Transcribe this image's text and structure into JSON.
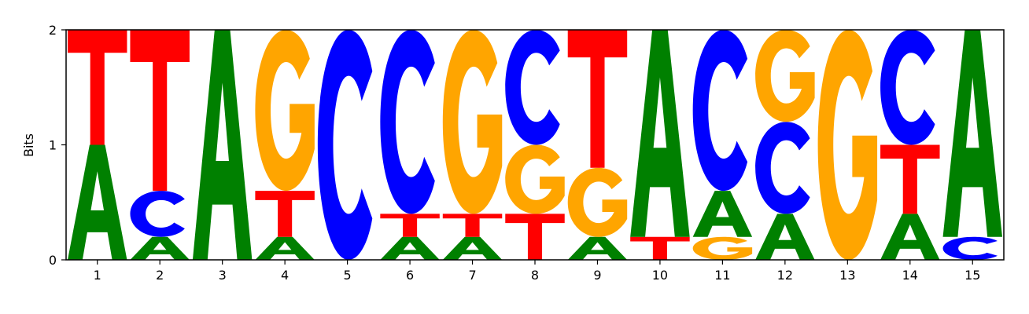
{
  "chart_data": {
    "type": "sequence-logo",
    "ylabel": "Bits",
    "ylim": [
      0,
      2
    ],
    "y_ticks": [
      "0",
      "1",
      "2"
    ],
    "x_ticks": [
      "1",
      "2",
      "3",
      "4",
      "5",
      "6",
      "7",
      "8",
      "9",
      "10",
      "11",
      "12",
      "13",
      "14",
      "15"
    ],
    "colors": {
      "A": "#008000",
      "C": "#0000ff",
      "G": "#ffa500",
      "T": "#ff0000"
    },
    "positions": [
      {
        "position": 1,
        "stack": [
          {
            "letter": "A",
            "bits": 1.0
          },
          {
            "letter": "T",
            "bits": 1.0
          }
        ]
      },
      {
        "position": 2,
        "stack": [
          {
            "letter": "A",
            "bits": 0.2
          },
          {
            "letter": "C",
            "bits": 0.4
          },
          {
            "letter": "T",
            "bits": 1.4
          }
        ]
      },
      {
        "position": 3,
        "stack": [
          {
            "letter": "A",
            "bits": 2.0
          }
        ]
      },
      {
        "position": 4,
        "stack": [
          {
            "letter": "A",
            "bits": 0.2
          },
          {
            "letter": "T",
            "bits": 0.4
          },
          {
            "letter": "G",
            "bits": 1.4
          }
        ]
      },
      {
        "position": 5,
        "stack": [
          {
            "letter": "C",
            "bits": 2.0
          }
        ]
      },
      {
        "position": 6,
        "stack": [
          {
            "letter": "A",
            "bits": 0.2
          },
          {
            "letter": "T",
            "bits": 0.2
          },
          {
            "letter": "C",
            "bits": 1.6
          }
        ]
      },
      {
        "position": 7,
        "stack": [
          {
            "letter": "A",
            "bits": 0.2
          },
          {
            "letter": "T",
            "bits": 0.2
          },
          {
            "letter": "G",
            "bits": 1.6
          }
        ]
      },
      {
        "position": 8,
        "stack": [
          {
            "letter": "T",
            "bits": 0.4
          },
          {
            "letter": "G",
            "bits": 0.6
          },
          {
            "letter": "C",
            "bits": 1.0
          }
        ]
      },
      {
        "position": 9,
        "stack": [
          {
            "letter": "A",
            "bits": 0.2
          },
          {
            "letter": "G",
            "bits": 0.6
          },
          {
            "letter": "T",
            "bits": 1.2
          }
        ]
      },
      {
        "position": 10,
        "stack": [
          {
            "letter": "T",
            "bits": 0.2
          },
          {
            "letter": "A",
            "bits": 1.8
          }
        ]
      },
      {
        "position": 11,
        "stack": [
          {
            "letter": "G",
            "bits": 0.2
          },
          {
            "letter": "A",
            "bits": 0.4
          },
          {
            "letter": "C",
            "bits": 1.4
          }
        ]
      },
      {
        "position": 12,
        "stack": [
          {
            "letter": "A",
            "bits": 0.4
          },
          {
            "letter": "C",
            "bits": 0.8
          },
          {
            "letter": "G",
            "bits": 0.8
          }
        ]
      },
      {
        "position": 13,
        "stack": [
          {
            "letter": "G",
            "bits": 2.0
          }
        ]
      },
      {
        "position": 14,
        "stack": [
          {
            "letter": "A",
            "bits": 0.4
          },
          {
            "letter": "T",
            "bits": 0.6
          },
          {
            "letter": "C",
            "bits": 1.0
          }
        ]
      },
      {
        "position": 15,
        "stack": [
          {
            "letter": "C",
            "bits": 0.2
          },
          {
            "letter": "A",
            "bits": 1.8
          }
        ]
      }
    ]
  }
}
